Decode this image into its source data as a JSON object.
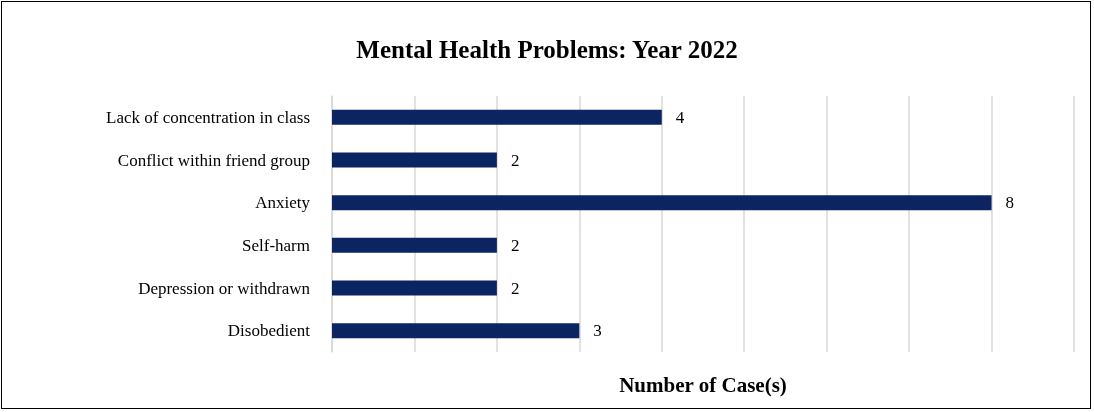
{
  "chart_data": {
    "type": "bar",
    "orientation": "horizontal",
    "title": "Mental Health Problems: Year 2022",
    "xlabel": "Number of Case(s)",
    "categories": [
      "Lack of concentration in class",
      "Conflict within friend group",
      "Anxiety",
      "Self-harm",
      "Depression or withdrawn",
      "Disobedient"
    ],
    "values": [
      4,
      2,
      8,
      2,
      2,
      3
    ],
    "color": "#0c2461",
    "xlim": [
      0,
      9
    ],
    "xticks": [
      0,
      1,
      2,
      3,
      4,
      5,
      6,
      7,
      8,
      9
    ],
    "tick_labels": "y",
    "grid": "x",
    "data_labels": true
  }
}
